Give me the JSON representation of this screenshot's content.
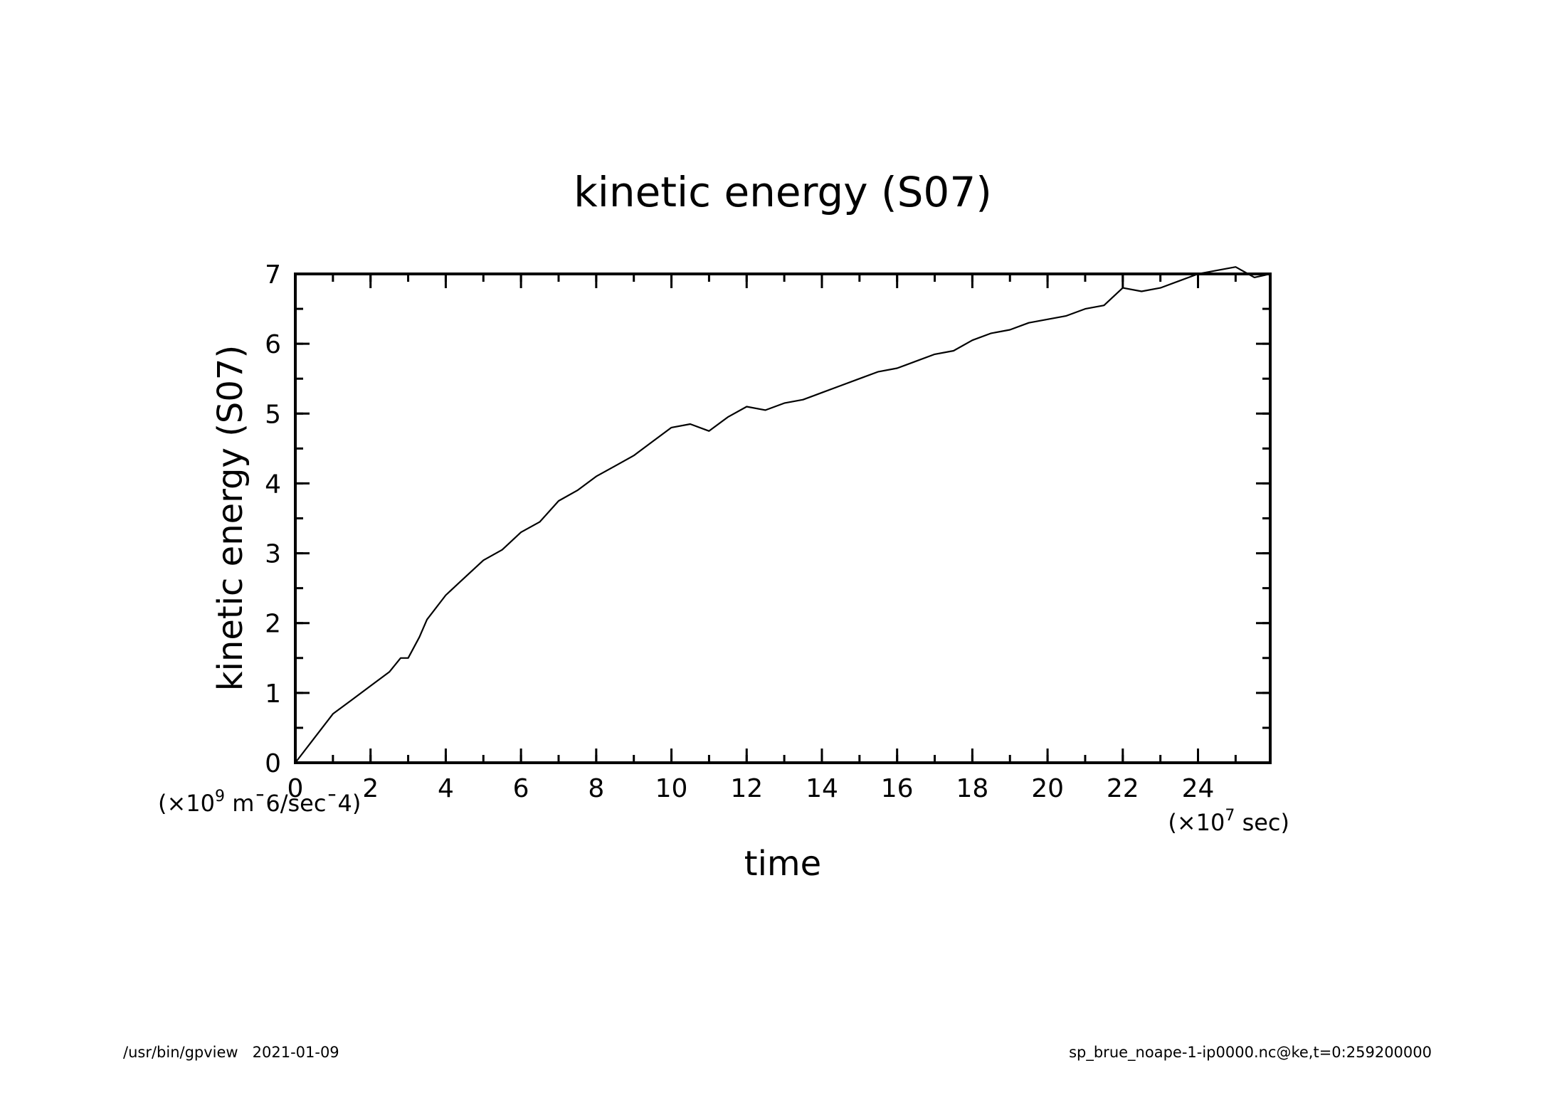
{
  "chart_data": {
    "type": "line",
    "title": "kinetic energy (S07)",
    "xlabel": "time",
    "ylabel": "kinetic energy (S07)",
    "x_unit_label": "(×10",
    "x_unit_exp": "7",
    "x_unit_suffix": " sec)",
    "y_unit_label": "(×10",
    "y_unit_exp": "9",
    "y_unit_suffix": " m¯6/sec¯4)",
    "xlim": [
      0,
      25.92
    ],
    "ylim": [
      0,
      7
    ],
    "x_ticks": [
      0,
      2,
      4,
      6,
      8,
      10,
      12,
      14,
      16,
      18,
      20,
      22,
      24
    ],
    "x_tick_labels": [
      "0",
      "2",
      "4",
      "6",
      "8",
      "10",
      "12",
      "14",
      "16",
      "18",
      "20",
      "22",
      "24"
    ],
    "x_minor_step": 1,
    "y_ticks": [
      0,
      1,
      2,
      3,
      4,
      5,
      6,
      7
    ],
    "y_tick_labels": [
      "0",
      "1",
      "2",
      "3",
      "4",
      "5",
      "6",
      "7"
    ],
    "y_minor_step": 0.5,
    "grid": false,
    "series": [
      {
        "x": [
          0,
          0.5,
          1,
          1.5,
          2,
          2.5,
          2.8,
          3,
          3.3,
          3.5,
          4,
          4.3,
          4.5,
          5,
          5.5,
          6,
          6.5,
          7,
          7.5,
          8,
          8.5,
          9,
          9.5,
          10,
          10.5,
          11,
          11.5,
          12,
          12.5,
          13,
          13.5,
          14,
          14.5,
          15,
          15.5,
          16,
          16.5,
          17,
          17.5,
          18,
          18.5,
          19,
          19.5,
          20,
          20.5,
          21,
          21.5,
          22,
          22.5,
          23,
          23.5,
          24,
          24.5,
          25,
          25.5,
          25.92
        ],
        "y": [
          0,
          0.35,
          0.7,
          0.9,
          1.1,
          1.3,
          1.5,
          1.5,
          1.8,
          2.05,
          2.4,
          2.55,
          2.65,
          2.9,
          3.05,
          3.3,
          3.45,
          3.75,
          3.9,
          4.1,
          4.25,
          4.4,
          4.6,
          4.8,
          4.85,
          4.75,
          4.95,
          5.1,
          5.05,
          5.15,
          5.2,
          5.3,
          5.4,
          5.5,
          5.6,
          5.65,
          5.75,
          5.85,
          5.9,
          6.05,
          6.15,
          6.2,
          6.3,
          6.35,
          6.4,
          6.5,
          6.55,
          6.8,
          6.75,
          6.8,
          6.9,
          7.0,
          7.05,
          7.1,
          6.95,
          7.0
        ]
      }
    ]
  },
  "footer": {
    "left": "/usr/bin/gpview   2021-01-09",
    "right": "sp_brue_noape-1-ip0000.nc@ke,t=0:259200000"
  },
  "colors": {
    "line": "#000000",
    "axes": "#000000",
    "background": "#ffffff"
  }
}
